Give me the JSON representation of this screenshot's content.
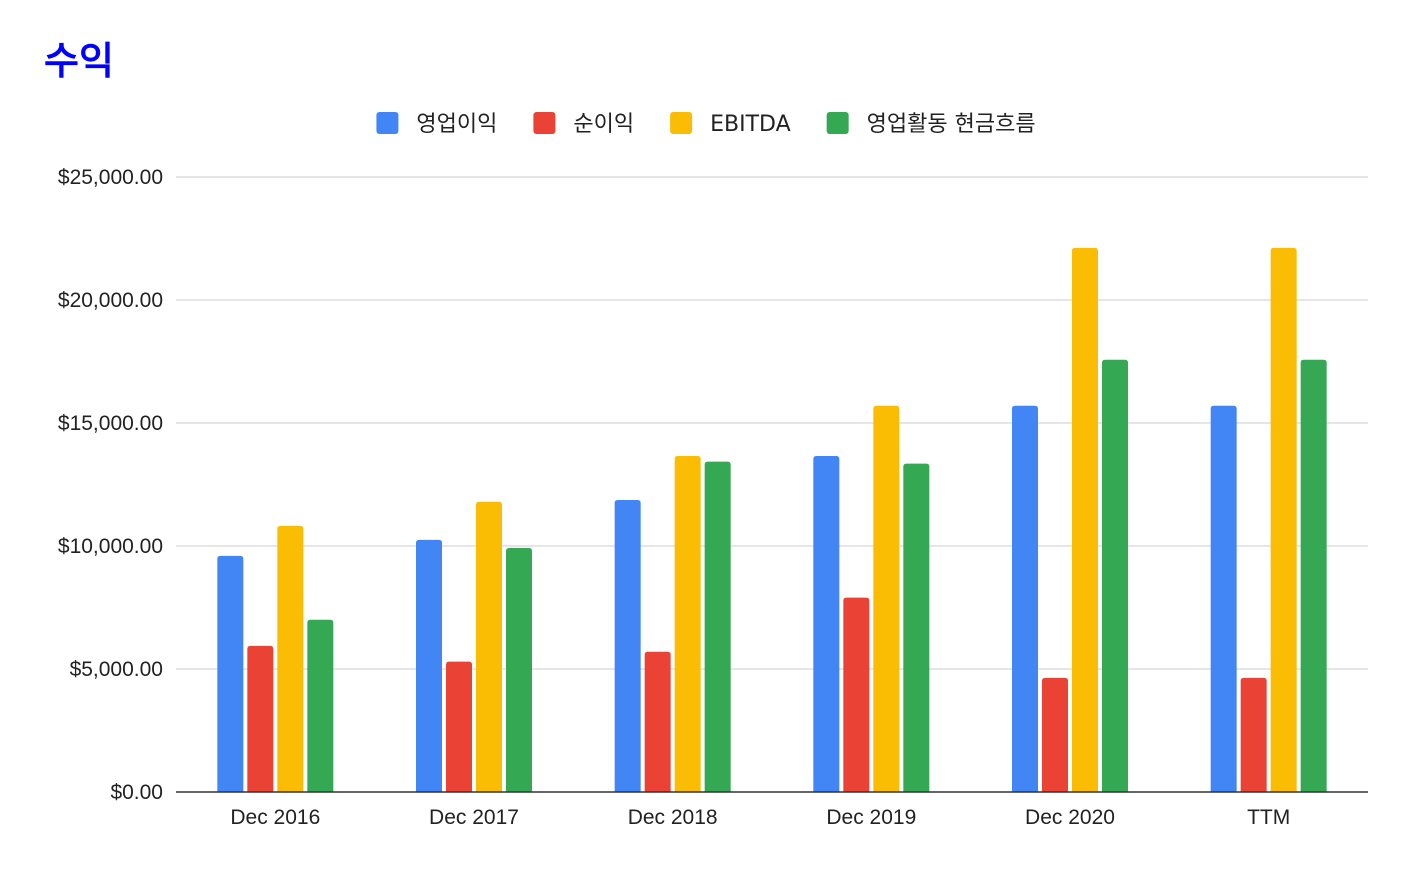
{
  "chart_data": {
    "type": "bar",
    "title": "수익",
    "title_color": "#0000FF",
    "legend_position": "top-center",
    "grid": true,
    "categories": [
      "Dec 2016",
      "Dec 2017",
      "Dec 2018",
      "Dec 2019",
      "Dec 2020",
      "TTM"
    ],
    "series": [
      {
        "name": "영업이익",
        "color": "#4285F4",
        "values": [
          9600,
          10250,
          11870,
          13660,
          15700,
          15700
        ]
      },
      {
        "name": "순이익",
        "color": "#EA4335",
        "values": [
          5940,
          5300,
          5700,
          7900,
          4640,
          4640
        ]
      },
      {
        "name": "EBITDA",
        "color": "#FBBC04",
        "values": [
          10820,
          11800,
          13660,
          15700,
          22120,
          22120
        ]
      },
      {
        "name": "영업활동 현금흐름",
        "color": "#34A853",
        "values": [
          7000,
          9920,
          13430,
          13350,
          17570,
          17570
        ]
      }
    ],
    "ylim": [
      0,
      25000
    ],
    "yticks": [
      0,
      5000,
      10000,
      15000,
      20000,
      25000
    ],
    "ytick_labels": [
      "$0.00",
      "$5,000.00",
      "$10,000.00",
      "$15,000.00",
      "$20,000.00",
      "$25,000.00"
    ],
    "xlabel": "",
    "ylabel": ""
  }
}
